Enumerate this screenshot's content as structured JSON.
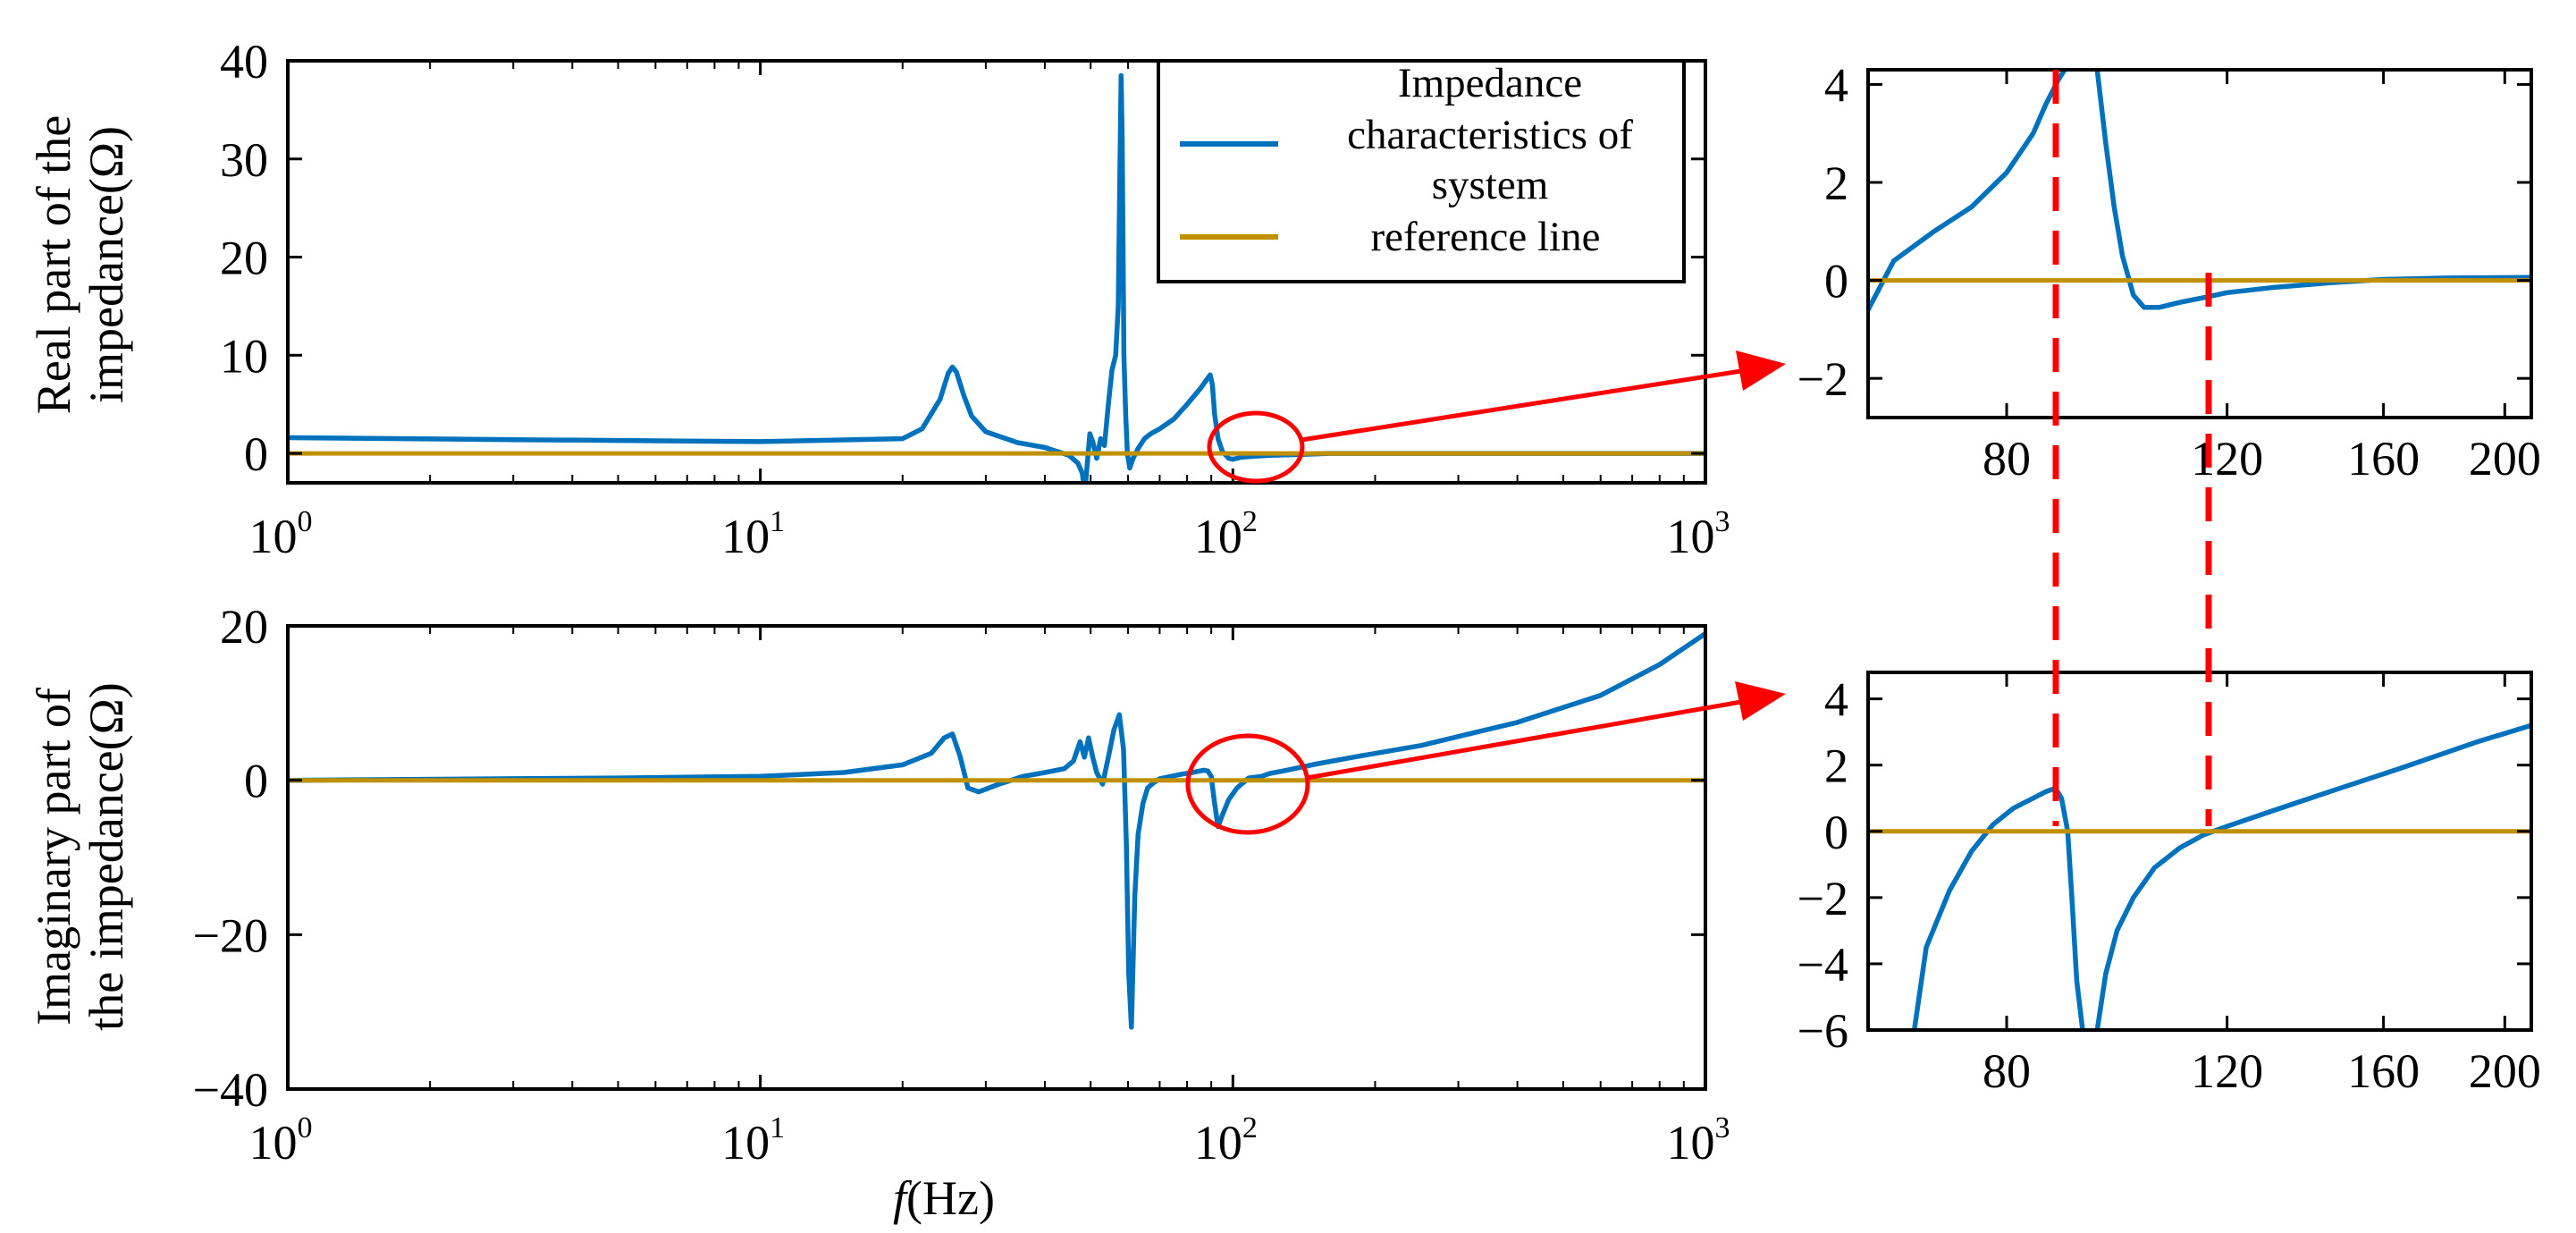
{
  "legend": {
    "entries": [
      {
        "lines": [
          "Impedance",
          "characteristics of",
          "system"
        ],
        "color": "#0072BD"
      },
      {
        "lines": [
          "reference line"
        ],
        "color": "#C09000"
      }
    ]
  },
  "axes_labels": {
    "real_ylabel": [
      "Real part of the",
      "impedance(Ω)"
    ],
    "imag_ylabel": [
      "Imaginary part of",
      "the impedance(Ω)"
    ],
    "xlabel_italic": "f",
    "xlabel_rest": "(Hz)"
  },
  "colors": {
    "series": "#0072BD",
    "reference": "#C09000",
    "annotation": "#FF0000"
  },
  "chart_data": [
    {
      "id": "real_main",
      "type": "line",
      "xscale": "log",
      "xlim": [
        1,
        1000
      ],
      "ylim": [
        -3,
        40
      ],
      "yticks": [
        0,
        10,
        20,
        30,
        40
      ],
      "ytick_labels": [
        "0",
        "10",
        "20",
        "30",
        "40"
      ],
      "xticks": [
        1,
        10,
        100,
        1000
      ],
      "xtick_labels": [
        [
          "10",
          "0"
        ],
        [
          "10",
          "1"
        ],
        [
          "10",
          "2"
        ],
        [
          "10",
          "3"
        ]
      ],
      "ylabel": "Real part of the impedance(Ω)",
      "legend": "top-right",
      "series": [
        {
          "name": "Impedance characteristics of system",
          "x": [
            1,
            3,
            10,
            20,
            22,
            24,
            25,
            25.5,
            26,
            27,
            28,
            30,
            35,
            40,
            45,
            47,
            48,
            48.6,
            49.2,
            49.8,
            50.5,
            51.5,
            52.5,
            53.5,
            54.5,
            55.5,
            56.5,
            57.2,
            57.7,
            58,
            58.3,
            58.8,
            59.3,
            59.8,
            60.5,
            61.5,
            63,
            65,
            67,
            70,
            75,
            80,
            85,
            88,
            89.5,
            90.5,
            91.5,
            93,
            95,
            98,
            100,
            104,
            110,
            120,
            140,
            160,
            200,
            300,
            500,
            1000
          ],
          "y": [
            1.6,
            1.4,
            1.2,
            1.5,
            2.5,
            5.5,
            8.2,
            8.8,
            8.3,
            5.8,
            3.8,
            2.2,
            1.1,
            0.6,
            -0.2,
            -1.0,
            -2.0,
            -4.0,
            -1.0,
            2.0,
            1.2,
            -0.5,
            1.5,
            0.8,
            5.0,
            8.5,
            10.0,
            15.0,
            30.0,
            38.5,
            32.0,
            10.0,
            4.0,
            0.0,
            -1.5,
            -0.5,
            0.5,
            1.5,
            2.0,
            2.5,
            3.5,
            5.0,
            6.5,
            7.5,
            8.0,
            7.0,
            4.0,
            1.5,
            0.2,
            -0.5,
            -0.6,
            -0.4,
            -0.3,
            -0.2,
            -0.1,
            0.0,
            0.0,
            0.0,
            0.0,
            0.0
          ]
        },
        {
          "name": "reference line",
          "x": [
            1,
            1000
          ],
          "y": [
            0,
            0
          ]
        }
      ]
    },
    {
      "id": "imag_main",
      "type": "line",
      "xscale": "log",
      "xlim": [
        1,
        1000
      ],
      "ylim": [
        -40,
        20
      ],
      "yticks": [
        -40,
        -20,
        0,
        20
      ],
      "ytick_labels": [
        "−40",
        "−20",
        "0",
        "20"
      ],
      "xticks": [
        1,
        10,
        100,
        1000
      ],
      "xtick_labels": [
        [
          "10",
          "0"
        ],
        [
          "10",
          "1"
        ],
        [
          "10",
          "2"
        ],
        [
          "10",
          "3"
        ]
      ],
      "ylabel": "Imaginary part of the impedance(Ω)",
      "xlabel": "f(Hz)",
      "series": [
        {
          "name": "Impedance characteristics of system",
          "x": [
            1,
            3,
            5,
            10,
            15,
            20,
            23,
            24.5,
            25.5,
            26.5,
            27.5,
            29,
            32,
            36,
            40,
            44,
            46,
            47.5,
            48.5,
            49.5,
            50.5,
            51.5,
            53,
            54.5,
            56,
            57.5,
            58.7,
            59.5,
            60.2,
            61,
            62,
            63,
            64.5,
            66,
            68,
            70,
            74,
            78,
            82,
            85,
            87,
            88.5,
            90,
            91.5,
            93,
            95,
            98,
            102,
            108,
            115,
            120,
            130,
            150,
            180,
            250,
            400,
            600,
            800,
            1000
          ],
          "y": [
            0,
            0.2,
            0.3,
            0.5,
            1.0,
            2.0,
            3.5,
            5.5,
            6.0,
            3.0,
            -1.0,
            -1.5,
            -0.5,
            0.5,
            1.0,
            1.5,
            2.5,
            5.0,
            3.0,
            5.5,
            3.0,
            1.0,
            -0.5,
            3.0,
            6.5,
            8.5,
            4.0,
            -8.0,
            -25.0,
            -32.0,
            -15.0,
            -7.0,
            -3.0,
            -1.0,
            -0.3,
            0.2,
            0.5,
            0.8,
            1.0,
            1.2,
            1.3,
            1.2,
            0.5,
            -3.0,
            -6.0,
            -4.5,
            -2.5,
            -1.0,
            0.3,
            0.5,
            0.9,
            1.3,
            2.1,
            3.0,
            4.5,
            7.5,
            11.0,
            15.0,
            19.0
          ]
        },
        {
          "name": "reference line",
          "x": [
            1,
            1000
          ],
          "y": [
            0,
            0
          ]
        }
      ]
    },
    {
      "id": "real_zoom",
      "type": "line",
      "xscale": "log",
      "xlim": [
        62,
        210
      ],
      "ylim": [
        -2.8,
        4.3
      ],
      "yticks": [
        -2,
        0,
        2,
        4
      ],
      "ytick_labels": [
        "−2",
        "0",
        "2",
        "4"
      ],
      "xticks": [
        80,
        120,
        160,
        200
      ],
      "xtick_labels": [
        "80",
        "120",
        "160",
        "200"
      ],
      "series": [
        {
          "name": "Impedance characteristics of system",
          "x": [
            62,
            65,
            70,
            75,
            80,
            84,
            86,
            88,
            89
          ],
          "y": [
            -0.6,
            0.4,
            1.0,
            1.5,
            2.2,
            3.0,
            3.6,
            4.1,
            4.3
          ]
        },
        {
          "name": "Impedance characteristics of system",
          "x": [
            94.5,
            96,
            97.5,
            99,
            101,
            103,
            106,
            110,
            115,
            120,
            130,
            145,
            160,
            180,
            210
          ],
          "y": [
            4.3,
            2.8,
            1.5,
            0.5,
            -0.3,
            -0.55,
            -0.55,
            -0.45,
            -0.35,
            -0.25,
            -0.15,
            -0.05,
            0.02,
            0.05,
            0.06
          ]
        },
        {
          "name": "reference line",
          "x": [
            62,
            210
          ],
          "y": [
            0,
            0
          ]
        }
      ]
    },
    {
      "id": "imag_zoom",
      "type": "line",
      "xscale": "log",
      "xlim": [
        62,
        210
      ],
      "ylim": [
        -6,
        4.8
      ],
      "yticks": [
        -6,
        -4,
        -2,
        0,
        2,
        4
      ],
      "ytick_labels": [
        "−6",
        "−4",
        "−2",
        "0",
        "2",
        "4"
      ],
      "xticks": [
        80,
        120,
        160,
        200
      ],
      "xtick_labels": [
        "80",
        "120",
        "160",
        "200"
      ],
      "series": [
        {
          "name": "Impedance characteristics of system",
          "x": [
            67.5,
            69,
            72,
            75,
            78,
            81,
            84,
            86,
            87.5,
            88.5,
            89.5,
            90.2,
            91,
            92
          ],
          "y": [
            -6.0,
            -3.5,
            -1.8,
            -0.6,
            0.2,
            0.7,
            1.0,
            1.2,
            1.3,
            1.0,
            0.0,
            -2.0,
            -4.5,
            -6.0
          ]
        },
        {
          "name": "Impedance characteristics of system",
          "x": [
            94.5,
            96,
            98,
            101,
            105,
            110,
            115,
            120,
            130,
            145,
            165,
            190,
            210
          ],
          "y": [
            -6.0,
            -4.3,
            -3.0,
            -2.0,
            -1.1,
            -0.5,
            -0.1,
            0.15,
            0.6,
            1.2,
            1.9,
            2.7,
            3.2
          ]
        },
        {
          "name": "reference line",
          "x": [
            62,
            210
          ],
          "y": [
            0,
            0
          ]
        }
      ]
    }
  ]
}
